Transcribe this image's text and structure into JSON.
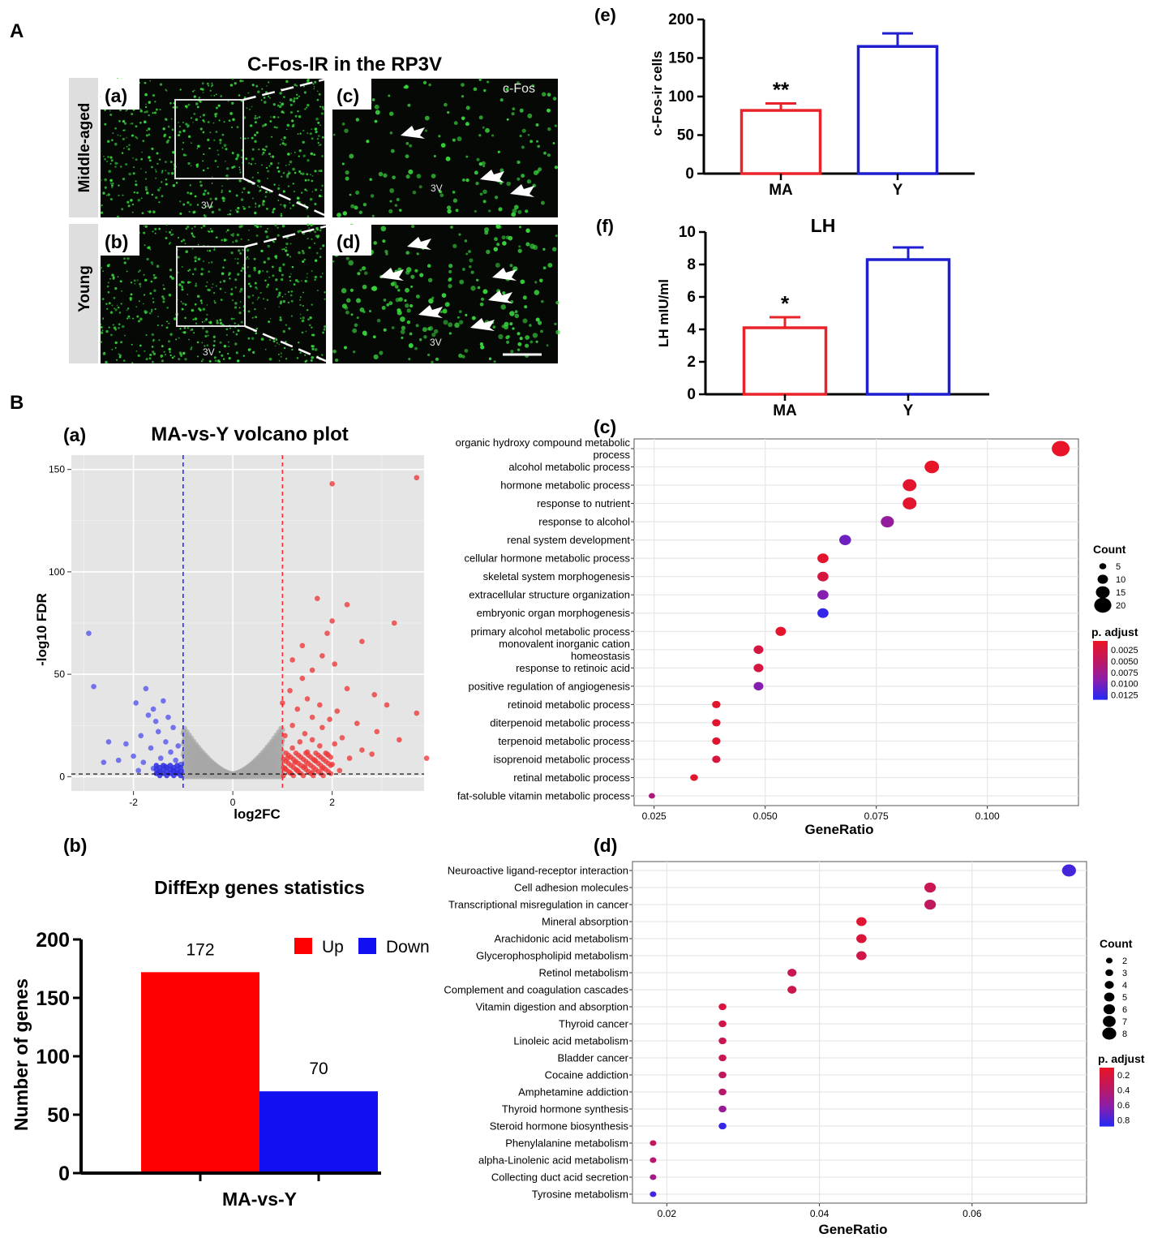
{
  "panels": {
    "A": "A",
    "B": "B"
  },
  "micrograph": {
    "title": "C-Fos-IR in the RP3V",
    "row_labels": [
      "Middle-aged",
      "Young"
    ],
    "subpanel_labels": [
      "(a)",
      "(b)",
      "(c)",
      "(d)"
    ],
    "region_label": "3V",
    "stain_label": "c-Fos"
  },
  "colors": {
    "red": "#e8232a",
    "blue": "#1f1fd0",
    "bar_red": "#ff0000",
    "bar_blue": "#1010f0",
    "volcano_bg": "#e5e5e5",
    "dot_bg": "#ffffff",
    "grid": "#e6e6e6",
    "micro_bg": "#050805",
    "micro_dot": "#39d43c"
  },
  "chart_data": [
    {
      "id": "c-fos",
      "panel": "(e)",
      "type": "bar",
      "categories": [
        "MA",
        "Y"
      ],
      "values": [
        82,
        165
      ],
      "errors": [
        9,
        17
      ],
      "significance": [
        "**",
        ""
      ],
      "ylabel": "c-Fos-ir cells",
      "ylim": [
        0,
        200
      ],
      "yticks": [
        0,
        50,
        100,
        150,
        200
      ],
      "bar_colors": [
        "#e8232a",
        "#1f1fd0"
      ]
    },
    {
      "id": "lh",
      "panel": "(f)",
      "type": "bar",
      "title": "LH",
      "categories": [
        "MA",
        "Y"
      ],
      "values": [
        4.1,
        8.3
      ],
      "errors": [
        0.65,
        0.75
      ],
      "significance": [
        "*",
        ""
      ],
      "ylabel": "LH mIU/ml",
      "ylim": [
        0,
        10
      ],
      "yticks": [
        0,
        2,
        4,
        6,
        8,
        10
      ],
      "bar_colors": [
        "#e8232a",
        "#1f1fd0"
      ]
    },
    {
      "id": "volcano",
      "panel": "(a)",
      "type": "scatter",
      "title": "MA-vs-Y volcano plot",
      "xlabel": "log2FC",
      "ylabel": "-log10 FDR",
      "xlim": [
        -3.25,
        3.85
      ],
      "ylim": [
        -7,
        157
      ],
      "xticks": [
        -2,
        0,
        2
      ],
      "yticks": [
        0,
        50,
        100,
        150
      ],
      "thresholds": {
        "x": [
          -1,
          1
        ],
        "y": 1.3
      },
      "up_points": [
        [
          3.7,
          146
        ],
        [
          2.0,
          143
        ],
        [
          2.3,
          84
        ],
        [
          1.7,
          87
        ],
        [
          2.0,
          76
        ],
        [
          3.25,
          75
        ],
        [
          1.9,
          70
        ],
        [
          1.4,
          64
        ],
        [
          2.6,
          66
        ],
        [
          1.8,
          59
        ],
        [
          1.2,
          57
        ],
        [
          2.05,
          55
        ],
        [
          1.6,
          52
        ],
        [
          1.4,
          48
        ],
        [
          2.3,
          43
        ],
        [
          2.85,
          40
        ],
        [
          3.1,
          35
        ],
        [
          1.15,
          42
        ],
        [
          1.5,
          38
        ],
        [
          1.75,
          35
        ],
        [
          1.3,
          33
        ],
        [
          2.1,
          32
        ],
        [
          3.7,
          31
        ],
        [
          1.0,
          36
        ],
        [
          1.6,
          29
        ],
        [
          1.95,
          28
        ],
        [
          2.5,
          26
        ],
        [
          1.2,
          25
        ],
        [
          1.8,
          24
        ],
        [
          2.9,
          22
        ],
        [
          1.45,
          21
        ],
        [
          1.05,
          20
        ],
        [
          2.2,
          19
        ],
        [
          1.6,
          18
        ],
        [
          3.35,
          18
        ],
        [
          1.35,
          17
        ],
        [
          2.05,
          16
        ],
        [
          1.75,
          15
        ],
        [
          2.6,
          13
        ],
        [
          2.8,
          11
        ],
        [
          1.2,
          14
        ],
        [
          1.5,
          12
        ],
        [
          1.9,
          11
        ],
        [
          3.9,
          9
        ],
        [
          1.1,
          9
        ],
        [
          1.65,
          8
        ],
        [
          2.35,
          9
        ],
        [
          1.25,
          7
        ],
        [
          2.0,
          6
        ],
        [
          1.45,
          5
        ],
        [
          1.05,
          4
        ],
        [
          1.8,
          4
        ],
        [
          1.3,
          3
        ],
        [
          2.15,
          3
        ],
        [
          1.6,
          2
        ],
        [
          1.15,
          2
        ]
      ],
      "down_points": [
        [
          -2.9,
          70
        ],
        [
          -2.8,
          44
        ],
        [
          -1.75,
          43
        ],
        [
          -1.4,
          37
        ],
        [
          -1.95,
          36
        ],
        [
          -1.6,
          33
        ],
        [
          -1.7,
          30
        ],
        [
          -1.3,
          29
        ],
        [
          -1.55,
          27
        ],
        [
          -1.2,
          24
        ],
        [
          -1.5,
          22
        ],
        [
          -1.85,
          20
        ],
        [
          -2.5,
          17
        ],
        [
          -1.35,
          17
        ],
        [
          -2.15,
          16
        ],
        [
          -1.1,
          15
        ],
        [
          -1.65,
          14
        ],
        [
          -1.25,
          12
        ],
        [
          -2.0,
          10
        ],
        [
          -2.3,
          8
        ],
        [
          -2.6,
          7
        ],
        [
          -1.45,
          9
        ],
        [
          -1.15,
          8
        ],
        [
          -1.8,
          7
        ],
        [
          -1.05,
          6
        ],
        [
          -1.35,
          5
        ],
        [
          -1.6,
          4
        ],
        [
          -1.2,
          3
        ],
        [
          -1.9,
          3
        ],
        [
          -1.5,
          2
        ],
        [
          -1.1,
          2
        ]
      ]
    },
    {
      "id": "degs",
      "panel": "(b)",
      "type": "bar",
      "title": "DiffExp genes statistics",
      "categories": [
        "MA-vs-Y"
      ],
      "series": [
        {
          "name": "Up",
          "values": [
            172
          ]
        },
        {
          "name": "Down",
          "values": [
            70
          ]
        }
      ],
      "ylabel": "Number of genes",
      "ylim": [
        0,
        200
      ],
      "yticks": [
        0,
        50,
        100,
        150,
        200
      ],
      "legend": "top-right",
      "series_colors": [
        "#ff0000",
        "#1010f0"
      ]
    },
    {
      "id": "go-enrichment",
      "panel": "(c)",
      "type": "scatter",
      "xlabel": "GeneRatio",
      "xlim": [
        0.0205,
        0.1205
      ],
      "xticks": [
        0.025,
        0.05,
        0.075,
        0.1
      ],
      "xtick_labels": [
        "0.025",
        "0.050",
        "0.075",
        "0.100"
      ],
      "terms": [
        {
          "lines": [
            "organic hydroxy compound metabolic",
            "process"
          ],
          "gene_ratio": 0.1165,
          "count": 21,
          "p_adjust": 0.0005
        },
        {
          "lines": [
            "alcohol metabolic process"
          ],
          "gene_ratio": 0.0875,
          "count": 16,
          "p_adjust": 0.0005
        },
        {
          "lines": [
            "hormone metabolic process"
          ],
          "gene_ratio": 0.0825,
          "count": 15,
          "p_adjust": 0.001
        },
        {
          "lines": [
            "response to nutrient"
          ],
          "gene_ratio": 0.0825,
          "count": 15,
          "p_adjust": 0.001
        },
        {
          "lines": [
            "response to alcohol"
          ],
          "gene_ratio": 0.0775,
          "count": 14,
          "p_adjust": 0.0085
        },
        {
          "lines": [
            "renal system development"
          ],
          "gene_ratio": 0.068,
          "count": 12,
          "p_adjust": 0.0105
        },
        {
          "lines": [
            "cellular hormone metabolic process"
          ],
          "gene_ratio": 0.063,
          "count": 11,
          "p_adjust": 0.001
        },
        {
          "lines": [
            "skeletal system morphogenesis"
          ],
          "gene_ratio": 0.063,
          "count": 11,
          "p_adjust": 0.0025
        },
        {
          "lines": [
            "extracellular structure organization"
          ],
          "gene_ratio": 0.063,
          "count": 11,
          "p_adjust": 0.0095
        },
        {
          "lines": [
            "embryonic organ morphogenesis"
          ],
          "gene_ratio": 0.063,
          "count": 11,
          "p_adjust": 0.013
        },
        {
          "lines": [
            "primary alcohol metabolic process"
          ],
          "gene_ratio": 0.0535,
          "count": 10,
          "p_adjust": 0.001
        },
        {
          "lines": [
            "monovalent inorganic cation",
            "homeostasis"
          ],
          "gene_ratio": 0.0485,
          "count": 9,
          "p_adjust": 0.0025
        },
        {
          "lines": [
            "response to retinoic acid"
          ],
          "gene_ratio": 0.0485,
          "count": 9,
          "p_adjust": 0.0025
        },
        {
          "lines": [
            "positive regulation of angiogenesis"
          ],
          "gene_ratio": 0.0485,
          "count": 9,
          "p_adjust": 0.0095
        },
        {
          "lines": [
            "retinoid metabolic process"
          ],
          "gene_ratio": 0.039,
          "count": 7,
          "p_adjust": 0.001
        },
        {
          "lines": [
            "diterpenoid metabolic process"
          ],
          "gene_ratio": 0.039,
          "count": 7,
          "p_adjust": 0.001
        },
        {
          "lines": [
            "terpenoid metabolic process"
          ],
          "gene_ratio": 0.039,
          "count": 7,
          "p_adjust": 0.001
        },
        {
          "lines": [
            "isoprenoid metabolic process"
          ],
          "gene_ratio": 0.039,
          "count": 7,
          "p_adjust": 0.002
        },
        {
          "lines": [
            "retinal metabolic process"
          ],
          "gene_ratio": 0.034,
          "count": 6,
          "p_adjust": 0.001
        },
        {
          "lines": [
            "fat-soluble vitamin metabolic process"
          ],
          "gene_ratio": 0.0245,
          "count": 4,
          "p_adjust": 0.0065
        }
      ],
      "size_legend": {
        "title": "Count",
        "values": [
          5,
          10,
          15,
          20
        ]
      },
      "color_legend": {
        "title": "p. adjust",
        "range": [
          0.0005,
          0.0135
        ],
        "ticks": [
          "0.0025",
          "0.0050",
          "0.0075",
          "0.0100",
          "0.0125"
        ],
        "tick_values": [
          0.0025,
          0.005,
          0.0075,
          0.01,
          0.0125
        ]
      }
    },
    {
      "id": "kegg-enrichment",
      "panel": "(d)",
      "type": "scatter",
      "xlabel": "GeneRatio",
      "xlim": [
        0.0155,
        0.075
      ],
      "xticks": [
        0.02,
        0.04,
        0.06
      ],
      "xtick_labels": [
        "0.02",
        "0.04",
        "0.06"
      ],
      "terms": [
        {
          "lines": [
            "Neuroactive ligand-receptor interaction"
          ],
          "gene_ratio": 0.0727,
          "count": 8,
          "p_adjust": 0.8
        },
        {
          "lines": [
            "Cell adhesion molecules"
          ],
          "gene_ratio": 0.0545,
          "count": 6,
          "p_adjust": 0.3
        },
        {
          "lines": [
            "Transcriptional misregulation in cancer"
          ],
          "gene_ratio": 0.0545,
          "count": 6,
          "p_adjust": 0.35
        },
        {
          "lines": [
            "Mineral absorption"
          ],
          "gene_ratio": 0.0455,
          "count": 5,
          "p_adjust": 0.15
        },
        {
          "lines": [
            "Arachidonic acid metabolism"
          ],
          "gene_ratio": 0.0455,
          "count": 5,
          "p_adjust": 0.18
        },
        {
          "lines": [
            "Glycerophospholipid metabolism"
          ],
          "gene_ratio": 0.0455,
          "count": 5,
          "p_adjust": 0.25
        },
        {
          "lines": [
            "Retinol metabolism"
          ],
          "gene_ratio": 0.0364,
          "count": 4,
          "p_adjust": 0.3
        },
        {
          "lines": [
            "Complement and coagulation cascades"
          ],
          "gene_ratio": 0.0364,
          "count": 4,
          "p_adjust": 0.28
        },
        {
          "lines": [
            "Vitamin digestion and absorption"
          ],
          "gene_ratio": 0.0273,
          "count": 3,
          "p_adjust": 0.2
        },
        {
          "lines": [
            "Thyroid cancer"
          ],
          "gene_ratio": 0.0273,
          "count": 3,
          "p_adjust": 0.25
        },
        {
          "lines": [
            "Linoleic acid metabolism"
          ],
          "gene_ratio": 0.0273,
          "count": 3,
          "p_adjust": 0.3
        },
        {
          "lines": [
            "Bladder cancer"
          ],
          "gene_ratio": 0.0273,
          "count": 3,
          "p_adjust": 0.3
        },
        {
          "lines": [
            "Cocaine addiction"
          ],
          "gene_ratio": 0.0273,
          "count": 3,
          "p_adjust": 0.35
        },
        {
          "lines": [
            "Amphetamine addiction"
          ],
          "gene_ratio": 0.0273,
          "count": 3,
          "p_adjust": 0.4
        },
        {
          "lines": [
            "Thyroid hormone synthesis"
          ],
          "gene_ratio": 0.0273,
          "count": 3,
          "p_adjust": 0.55
        },
        {
          "lines": [
            "Steroid hormone biosynthesis"
          ],
          "gene_ratio": 0.0273,
          "count": 3,
          "p_adjust": 0.85
        },
        {
          "lines": [
            "Phenylalanine metabolism"
          ],
          "gene_ratio": 0.0182,
          "count": 2,
          "p_adjust": 0.35
        },
        {
          "lines": [
            "alpha-Linolenic acid metabolism"
          ],
          "gene_ratio": 0.0182,
          "count": 2,
          "p_adjust": 0.4
        },
        {
          "lines": [
            "Collecting duct acid secretion"
          ],
          "gene_ratio": 0.0182,
          "count": 2,
          "p_adjust": 0.5
        },
        {
          "lines": [
            "Tyrosine metabolism"
          ],
          "gene_ratio": 0.0182,
          "count": 2,
          "p_adjust": 0.8
        }
      ],
      "size_legend": {
        "title": "Count",
        "values": [
          2,
          3,
          4,
          5,
          6,
          7,
          8
        ]
      },
      "color_legend": {
        "title": "p. adjust",
        "range": [
          0.1,
          0.88
        ],
        "ticks": [
          "0.2",
          "0.4",
          "0.6",
          "0.8"
        ],
        "tick_values": [
          0.2,
          0.4,
          0.6,
          0.8
        ]
      }
    }
  ]
}
